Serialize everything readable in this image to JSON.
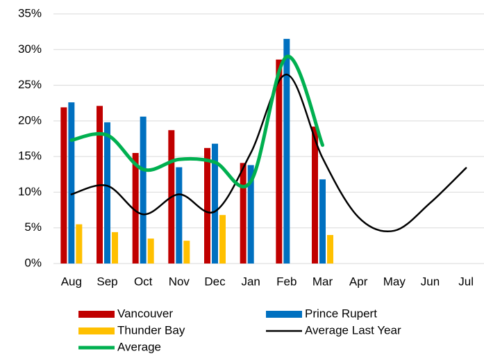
{
  "chart_data": {
    "type": "bar-line",
    "categories": [
      "Aug",
      "Sep",
      "Oct",
      "Nov",
      "Dec",
      "Jan",
      "Feb",
      "Mar",
      "Apr",
      "May",
      "Jun",
      "Jul"
    ],
    "series": [
      {
        "name": "Vancouver",
        "type": "bar",
        "color": "#c00000",
        "values": [
          21.9,
          22.1,
          15.5,
          18.7,
          16.2,
          14.1,
          28.6,
          19.2,
          null,
          null,
          null,
          null
        ]
      },
      {
        "name": "Prince Rupert",
        "type": "bar",
        "color": "#0070c0",
        "values": [
          22.6,
          19.8,
          20.6,
          13.5,
          16.8,
          13.8,
          31.5,
          11.8,
          null,
          null,
          null,
          null
        ]
      },
      {
        "name": "Thunder Bay",
        "type": "bar",
        "color": "#ffc000",
        "values": [
          5.5,
          4.4,
          3.5,
          3.2,
          6.8,
          null,
          null,
          4.0,
          null,
          null,
          null,
          null
        ]
      },
      {
        "name": "Average Last Year",
        "type": "line",
        "color": "#000000",
        "values": [
          9.7,
          10.9,
          6.9,
          9.7,
          7.3,
          15.5,
          26.5,
          14.8,
          6.5,
          4.6,
          8.5,
          13.4
        ]
      },
      {
        "name": "Average",
        "type": "line",
        "color": "#00b050",
        "values": [
          17.3,
          18.0,
          13.2,
          14.6,
          14.2,
          11.5,
          29.0,
          16.6,
          null,
          null,
          null,
          null
        ]
      }
    ],
    "ylim": [
      0,
      35
    ],
    "yticks": [
      {
        "value": 0,
        "label": "0%"
      },
      {
        "value": 5,
        "label": "5%"
      },
      {
        "value": 10,
        "label": "10%"
      },
      {
        "value": 15,
        "label": "15%"
      },
      {
        "value": 20,
        "label": "20%"
      },
      {
        "value": 25,
        "label": "25%"
      },
      {
        "value": 30,
        "label": "30%"
      },
      {
        "value": 35,
        "label": "35%"
      }
    ],
    "grid": true
  }
}
